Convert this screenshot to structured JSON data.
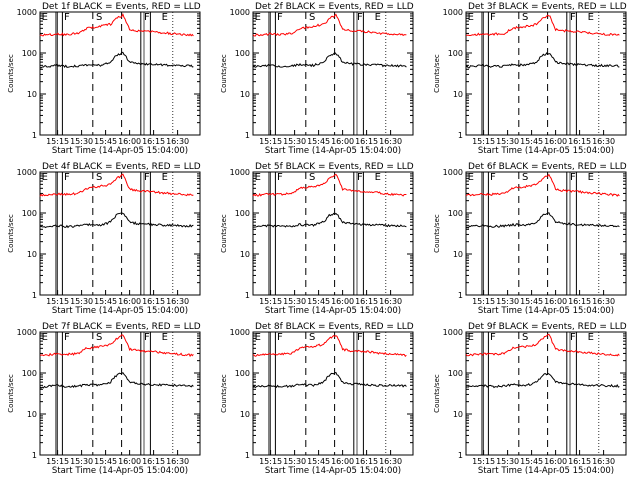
{
  "page": {
    "background": "#ffffff",
    "axis_color": "#000000",
    "events_color": "#000000",
    "lld_color": "#ff0000"
  },
  "chart_data": [
    {
      "type": "line",
      "title": "Det 1f BLACK = Events, RED = LLD",
      "xlabel": "Start Time (14-Apr-05 15:04:00)",
      "ylabel": "Counts/sec",
      "yscale": "log",
      "ylim": [
        1,
        1000
      ],
      "xlim": [
        "15:04",
        "16:44"
      ],
      "xticklabels": [
        "15:15",
        "15:30",
        "15:45",
        "16:00",
        "16:15",
        "16:30"
      ],
      "yticklabels": [
        "1",
        "10",
        "100",
        "1000"
      ],
      "grid": false,
      "period_labels": [
        "E",
        "F",
        "S",
        "F",
        "E"
      ],
      "series": [
        {
          "color": "#000000",
          "x": [
            "15:04",
            "15:10",
            "15:14",
            "15:20",
            "15:28",
            "15:33",
            "15:42",
            "15:48",
            "15:52",
            "15:56",
            "16:00",
            "16:05",
            "16:15",
            "16:25",
            "16:40"
          ],
          "y": [
            45,
            48,
            50,
            47,
            48,
            52,
            50,
            60,
            90,
            100,
            60,
            55,
            52,
            50,
            48
          ]
        },
        {
          "color": "#ff0000",
          "x": [
            "15:04",
            "15:10",
            "15:14",
            "15:20",
            "15:28",
            "15:33",
            "15:42",
            "15:48",
            "15:52",
            "15:56",
            "16:00",
            "16:05",
            "16:15",
            "16:25",
            "16:40"
          ],
          "y": [
            270,
            280,
            290,
            285,
            300,
            400,
            450,
            500,
            700,
            850,
            380,
            350,
            330,
            300,
            270
          ]
        }
      ]
    },
    {
      "type": "line",
      "title": "Det 2f BLACK = Events, RED = LLD",
      "xlabel": "Start Time (14-Apr-05 15:04:00)",
      "ylabel": "Counts/sec",
      "yscale": "log",
      "ylim": [
        1,
        1000
      ],
      "xlim": [
        "15:04",
        "16:44"
      ],
      "xticklabels": [
        "15:15",
        "15:30",
        "15:45",
        "16:00",
        "16:15",
        "16:30"
      ],
      "yticklabels": [
        "1",
        "10",
        "100",
        "1000"
      ],
      "grid": false,
      "period_labels": [
        "E",
        "F",
        "S",
        "F",
        "E"
      ],
      "series": [
        {
          "color": "#000000",
          "x": [
            "15:04",
            "15:10",
            "15:14",
            "15:20",
            "15:28",
            "15:33",
            "15:42",
            "15:48",
            "15:52",
            "15:56",
            "16:00",
            "16:05",
            "16:15",
            "16:25",
            "16:40"
          ],
          "y": [
            45,
            48,
            50,
            47,
            48,
            52,
            50,
            60,
            90,
            100,
            60,
            55,
            52,
            50,
            48
          ]
        },
        {
          "color": "#ff0000",
          "x": [
            "15:04",
            "15:10",
            "15:14",
            "15:20",
            "15:28",
            "15:33",
            "15:42",
            "15:48",
            "15:52",
            "15:56",
            "16:00",
            "16:05",
            "16:15",
            "16:25",
            "16:40"
          ],
          "y": [
            270,
            280,
            290,
            285,
            300,
            400,
            450,
            500,
            700,
            850,
            380,
            350,
            330,
            300,
            270
          ]
        }
      ]
    },
    {
      "type": "line",
      "title": "Det 3f BLACK = Events, RED = LLD",
      "xlabel": "Start Time (14-Apr-05 15:04:00)",
      "ylabel": "Counts/sec",
      "yscale": "log",
      "ylim": [
        1,
        1000
      ],
      "xlim": [
        "15:04",
        "16:44"
      ],
      "xticklabels": [
        "15:15",
        "15:30",
        "15:45",
        "16:00",
        "16:15",
        "16:30"
      ],
      "yticklabels": [
        "1",
        "10",
        "100",
        "1000"
      ],
      "grid": false,
      "period_labels": [
        "E",
        "F",
        "S",
        "F",
        "E"
      ],
      "series": [
        {
          "color": "#000000",
          "x": [
            "15:04",
            "15:10",
            "15:14",
            "15:20",
            "15:28",
            "15:33",
            "15:42",
            "15:48",
            "15:52",
            "15:56",
            "16:00",
            "16:05",
            "16:15",
            "16:25",
            "16:40"
          ],
          "y": [
            45,
            48,
            50,
            47,
            48,
            52,
            50,
            60,
            90,
            100,
            60,
            55,
            52,
            50,
            48
          ]
        },
        {
          "color": "#ff0000",
          "x": [
            "15:04",
            "15:10",
            "15:14",
            "15:20",
            "15:28",
            "15:33",
            "15:42",
            "15:48",
            "15:52",
            "15:56",
            "16:00",
            "16:05",
            "16:15",
            "16:25",
            "16:40"
          ],
          "y": [
            270,
            280,
            290,
            285,
            300,
            400,
            450,
            500,
            700,
            850,
            380,
            350,
            330,
            300,
            270
          ]
        }
      ]
    },
    {
      "type": "line",
      "title": "Det 4f BLACK = Events, RED = LLD",
      "xlabel": "Start Time (14-Apr-05 15:04:00)",
      "ylabel": "Counts/sec",
      "yscale": "log",
      "ylim": [
        1,
        1000
      ],
      "xlim": [
        "15:04",
        "16:44"
      ],
      "xticklabels": [
        "15:15",
        "15:30",
        "15:45",
        "16:00",
        "16:15",
        "16:30"
      ],
      "yticklabels": [
        "1",
        "10",
        "100",
        "1000"
      ],
      "grid": false,
      "period_labels": [
        "E",
        "F",
        "S",
        "F",
        "E"
      ],
      "series": [
        {
          "color": "#000000",
          "x": [
            "15:04",
            "15:10",
            "15:14",
            "15:20",
            "15:28",
            "15:33",
            "15:42",
            "15:48",
            "15:52",
            "15:56",
            "16:00",
            "16:05",
            "16:15",
            "16:25",
            "16:40"
          ],
          "y": [
            45,
            48,
            50,
            47,
            48,
            52,
            50,
            60,
            90,
            100,
            60,
            55,
            52,
            50,
            48
          ]
        },
        {
          "color": "#ff0000",
          "x": [
            "15:04",
            "15:10",
            "15:14",
            "15:20",
            "15:28",
            "15:33",
            "15:42",
            "15:48",
            "15:52",
            "15:56",
            "16:00",
            "16:05",
            "16:15",
            "16:25",
            "16:40"
          ],
          "y": [
            270,
            280,
            290,
            285,
            300,
            400,
            450,
            500,
            700,
            850,
            380,
            350,
            330,
            300,
            270
          ]
        }
      ]
    },
    {
      "type": "line",
      "title": "Det 5f BLACK = Events, RED = LLD",
      "xlabel": "Start Time (14-Apr-05 15:04:00)",
      "ylabel": "Counts/sec",
      "yscale": "log",
      "ylim": [
        1,
        1000
      ],
      "xlim": [
        "15:04",
        "16:44"
      ],
      "xticklabels": [
        "15:15",
        "15:30",
        "15:45",
        "16:00",
        "16:15",
        "16:30"
      ],
      "yticklabels": [
        "1",
        "10",
        "100",
        "1000"
      ],
      "grid": false,
      "period_labels": [
        "E",
        "F",
        "S",
        "F",
        "E"
      ],
      "series": [
        {
          "color": "#000000",
          "x": [
            "15:04",
            "15:10",
            "15:14",
            "15:20",
            "15:28",
            "15:33",
            "15:42",
            "15:48",
            "15:52",
            "15:56",
            "16:00",
            "16:05",
            "16:15",
            "16:25",
            "16:40"
          ],
          "y": [
            45,
            48,
            50,
            47,
            48,
            52,
            50,
            60,
            90,
            100,
            60,
            55,
            52,
            50,
            48
          ]
        },
        {
          "color": "#ff0000",
          "x": [
            "15:04",
            "15:10",
            "15:14",
            "15:20",
            "15:28",
            "15:33",
            "15:42",
            "15:48",
            "15:52",
            "15:56",
            "16:00",
            "16:05",
            "16:15",
            "16:25",
            "16:40"
          ],
          "y": [
            270,
            280,
            290,
            285,
            300,
            400,
            450,
            500,
            700,
            850,
            380,
            350,
            330,
            300,
            270
          ]
        }
      ]
    },
    {
      "type": "line",
      "title": "Det 6f BLACK = Events, RED = LLD",
      "xlabel": "Start Time (14-Apr-05 15:04:00)",
      "ylabel": "Counts/sec",
      "yscale": "log",
      "ylim": [
        1,
        1000
      ],
      "xlim": [
        "15:04",
        "16:44"
      ],
      "xticklabels": [
        "15:15",
        "15:30",
        "15:45",
        "16:00",
        "16:15",
        "16:30"
      ],
      "yticklabels": [
        "1",
        "10",
        "100",
        "1000"
      ],
      "grid": false,
      "period_labels": [
        "E",
        "F",
        "S",
        "F",
        "E"
      ],
      "series": [
        {
          "color": "#000000",
          "x": [
            "15:04",
            "15:10",
            "15:14",
            "15:20",
            "15:28",
            "15:33",
            "15:42",
            "15:48",
            "15:52",
            "15:56",
            "16:00",
            "16:05",
            "16:15",
            "16:25",
            "16:40"
          ],
          "y": [
            45,
            48,
            50,
            47,
            48,
            52,
            50,
            60,
            90,
            100,
            60,
            55,
            52,
            50,
            48
          ]
        },
        {
          "color": "#ff0000",
          "x": [
            "15:04",
            "15:10",
            "15:14",
            "15:20",
            "15:28",
            "15:33",
            "15:42",
            "15:48",
            "15:52",
            "15:56",
            "16:00",
            "16:05",
            "16:15",
            "16:25",
            "16:40"
          ],
          "y": [
            270,
            280,
            290,
            285,
            300,
            400,
            450,
            500,
            700,
            850,
            380,
            350,
            330,
            300,
            270
          ]
        }
      ]
    },
    {
      "type": "line",
      "title": "Det 7f BLACK = Events, RED = LLD",
      "xlabel": "Start Time (14-Apr-05 15:04:00)",
      "ylabel": "Counts/sec",
      "yscale": "log",
      "ylim": [
        1,
        1000
      ],
      "xlim": [
        "15:04",
        "16:44"
      ],
      "xticklabels": [
        "15:15",
        "15:30",
        "15:45",
        "16:00",
        "16:15",
        "16:30"
      ],
      "yticklabels": [
        "1",
        "10",
        "100",
        "1000"
      ],
      "grid": false,
      "period_labels": [
        "E",
        "F",
        "S",
        "F",
        "E"
      ],
      "series": [
        {
          "color": "#000000",
          "x": [
            "15:04",
            "15:10",
            "15:14",
            "15:20",
            "15:28",
            "15:33",
            "15:42",
            "15:48",
            "15:52",
            "15:56",
            "16:00",
            "16:05",
            "16:15",
            "16:25",
            "16:40"
          ],
          "y": [
            45,
            48,
            50,
            47,
            48,
            52,
            50,
            60,
            90,
            100,
            60,
            55,
            52,
            50,
            48
          ]
        },
        {
          "color": "#ff0000",
          "x": [
            "15:04",
            "15:10",
            "15:14",
            "15:20",
            "15:28",
            "15:33",
            "15:42",
            "15:48",
            "15:52",
            "15:56",
            "16:00",
            "16:05",
            "16:15",
            "16:25",
            "16:40"
          ],
          "y": [
            270,
            280,
            290,
            285,
            300,
            400,
            450,
            500,
            700,
            850,
            380,
            350,
            330,
            300,
            270
          ]
        }
      ]
    },
    {
      "type": "line",
      "title": "Det 8f BLACK = Events, RED = LLD",
      "xlabel": "Start Time (14-Apr-05 15:04:00)",
      "ylabel": "Counts/sec",
      "yscale": "log",
      "ylim": [
        1,
        1000
      ],
      "xlim": [
        "15:04",
        "16:44"
      ],
      "xticklabels": [
        "15:15",
        "15:30",
        "15:45",
        "16:00",
        "16:15",
        "16:30"
      ],
      "yticklabels": [
        "1",
        "10",
        "100",
        "1000"
      ],
      "grid": false,
      "period_labels": [
        "E",
        "F",
        "S",
        "F",
        "E"
      ],
      "series": [
        {
          "color": "#000000",
          "x": [
            "15:04",
            "15:10",
            "15:14",
            "15:20",
            "15:28",
            "15:33",
            "15:42",
            "15:48",
            "15:52",
            "15:56",
            "16:00",
            "16:05",
            "16:15",
            "16:25",
            "16:40"
          ],
          "y": [
            45,
            48,
            50,
            47,
            48,
            52,
            50,
            60,
            90,
            100,
            60,
            55,
            52,
            50,
            48
          ]
        },
        {
          "color": "#ff0000",
          "x": [
            "15:04",
            "15:10",
            "15:14",
            "15:20",
            "15:28",
            "15:33",
            "15:42",
            "15:48",
            "15:52",
            "15:56",
            "16:00",
            "16:05",
            "16:15",
            "16:25",
            "16:40"
          ],
          "y": [
            270,
            280,
            290,
            285,
            300,
            400,
            450,
            500,
            700,
            850,
            380,
            350,
            330,
            300,
            270
          ]
        }
      ]
    },
    {
      "type": "line",
      "title": "Det 9f BLACK = Events, RED = LLD",
      "xlabel": "Start Time (14-Apr-05 15:04:00)",
      "ylabel": "Counts/sec",
      "yscale": "log",
      "ylim": [
        1,
        1000
      ],
      "xlim": [
        "15:04",
        "16:44"
      ],
      "xticklabels": [
        "15:15",
        "15:30",
        "15:45",
        "16:00",
        "16:15",
        "16:30"
      ],
      "yticklabels": [
        "1",
        "10",
        "100",
        "1000"
      ],
      "grid": false,
      "period_labels": [
        "E",
        "F",
        "S",
        "F",
        "E"
      ],
      "series": [
        {
          "color": "#000000",
          "x": [
            "15:04",
            "15:10",
            "15:14",
            "15:20",
            "15:28",
            "15:33",
            "15:42",
            "15:48",
            "15:52",
            "15:56",
            "16:00",
            "16:05",
            "16:15",
            "16:25",
            "16:40"
          ],
          "y": [
            45,
            48,
            50,
            47,
            48,
            52,
            50,
            60,
            90,
            100,
            60,
            55,
            52,
            50,
            48
          ]
        },
        {
          "color": "#ff0000",
          "x": [
            "15:04",
            "15:10",
            "15:14",
            "15:20",
            "15:28",
            "15:33",
            "15:42",
            "15:48",
            "15:52",
            "15:56",
            "16:00",
            "16:05",
            "16:15",
            "16:25",
            "16:40"
          ],
          "y": [
            270,
            280,
            290,
            285,
            300,
            400,
            450,
            500,
            700,
            850,
            380,
            350,
            330,
            300,
            270
          ]
        }
      ]
    }
  ]
}
